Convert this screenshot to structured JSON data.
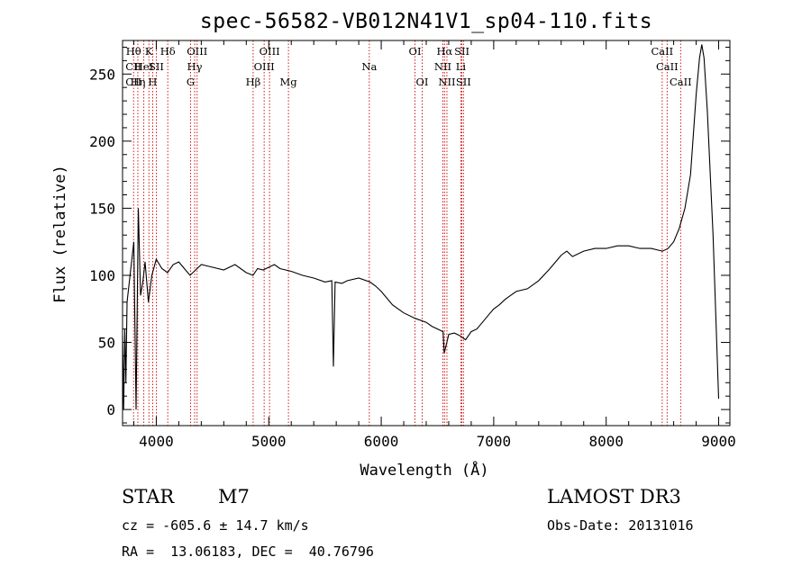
{
  "chart_data": {
    "type": "line",
    "title": "spec-56582-VB012N41V1_sp04-110.fits",
    "xlabel": "Wavelength (Å)",
    "ylabel": "Flux (relative)",
    "xlim": [
      3700,
      9100
    ],
    "ylim": [
      -12,
      275
    ],
    "x_ticks": [
      4000,
      5000,
      6000,
      7000,
      8000,
      9000
    ],
    "y_ticks": [
      0,
      50,
      100,
      150,
      200,
      250
    ],
    "grid": false,
    "series": [
      {
        "name": "flux",
        "x": [
          3700,
          3710,
          3720,
          3730,
          3740,
          3760,
          3780,
          3800,
          3820,
          3840,
          3860,
          3880,
          3900,
          3930,
          3960,
          4000,
          4050,
          4100,
          4150,
          4200,
          4250,
          4300,
          4350,
          4400,
          4500,
          4600,
          4700,
          4800,
          4860,
          4900,
          4950,
          5000,
          5050,
          5100,
          5200,
          5300,
          5400,
          5500,
          5560,
          5575,
          5590,
          5650,
          5700,
          5800,
          5900,
          5950,
          6000,
          6100,
          6200,
          6300,
          6400,
          6450,
          6500,
          6550,
          6560,
          6600,
          6650,
          6700,
          6750,
          6800,
          6850,
          6900,
          6950,
          7000,
          7050,
          7100,
          7150,
          7200,
          7300,
          7400,
          7500,
          7550,
          7600,
          7650,
          7700,
          7800,
          7900,
          8000,
          8100,
          8200,
          8300,
          8400,
          8500,
          8550,
          8600,
          8650,
          8700,
          8750,
          8800,
          8830,
          8850,
          8870,
          8900,
          8950,
          9000
        ],
        "y": [
          55,
          0,
          60,
          20,
          80,
          95,
          110,
          125,
          0,
          150,
          85,
          95,
          110,
          80,
          100,
          112,
          105,
          102,
          108,
          110,
          105,
          100,
          104,
          108,
          106,
          104,
          108,
          102,
          100,
          105,
          104,
          106,
          108,
          105,
          103,
          100,
          98,
          95,
          96,
          32,
          95,
          94,
          96,
          98,
          95,
          92,
          88,
          78,
          72,
          68,
          65,
          62,
          60,
          58,
          42,
          56,
          57,
          55,
          52,
          58,
          60,
          65,
          70,
          75,
          78,
          82,
          85,
          88,
          90,
          96,
          105,
          110,
          115,
          118,
          114,
          118,
          120,
          120,
          122,
          122,
          120,
          120,
          118,
          120,
          125,
          135,
          150,
          175,
          235,
          262,
          272,
          262,
          222,
          130,
          8
        ]
      }
    ],
    "line_markers": [
      {
        "label": "Hθ",
        "x": 3798,
        "row": 1
      },
      {
        "label": "CII",
        "x": 3798,
        "row": 2
      },
      {
        "label": "CII",
        "x": 3798,
        "row": 3
      },
      {
        "label": "K",
        "x": 3934,
        "row": 1
      },
      {
        "label": "HeI",
        "x": 3889,
        "row": 2
      },
      {
        "label": "Hη",
        "x": 3836,
        "row": 3
      },
      {
        "label": "SII",
        "x": 4000,
        "row": 2
      },
      {
        "label": "H",
        "x": 3968,
        "row": 3
      },
      {
        "label": "Hδ",
        "x": 4102,
        "row": 1
      },
      {
        "label": "OIII",
        "x": 4363,
        "row": 1
      },
      {
        "label": "Hγ",
        "x": 4341,
        "row": 2
      },
      {
        "label": "G",
        "x": 4305,
        "row": 3
      },
      {
        "label": "Hβ",
        "x": 4861,
        "row": 3
      },
      {
        "label": "OIII",
        "x": 5007,
        "row": 1
      },
      {
        "label": "OIII",
        "x": 4959,
        "row": 2
      },
      {
        "label": "Mg",
        "x": 5175,
        "row": 3
      },
      {
        "label": "Na",
        "x": 5894,
        "row": 2
      },
      {
        "label": "OI",
        "x": 6300,
        "row": 1
      },
      {
        "label": "OI",
        "x": 6364,
        "row": 3
      },
      {
        "label": "Hα",
        "x": 6563,
        "row": 1
      },
      {
        "label": "NII",
        "x": 6548,
        "row": 2
      },
      {
        "label": "NII",
        "x": 6584,
        "row": 3
      },
      {
        "label": "SII",
        "x": 6717,
        "row": 1
      },
      {
        "label": "Li",
        "x": 6708,
        "row": 2
      },
      {
        "label": "SII",
        "x": 6731,
        "row": 3
      },
      {
        "label": "CaII",
        "x": 8498,
        "row": 1
      },
      {
        "label": "CaII",
        "x": 8542,
        "row": 2
      },
      {
        "label": "CaII",
        "x": 8662,
        "row": 3
      }
    ]
  },
  "info": {
    "object_class": "STAR",
    "subclass": "M7",
    "survey": "LAMOST DR3",
    "redshift": "cz = -605.6 ± 14.7 km/s",
    "obs_date": "Obs-Date: 20131016",
    "coords": "RA =  13.06183, DEC =  40.76796"
  }
}
